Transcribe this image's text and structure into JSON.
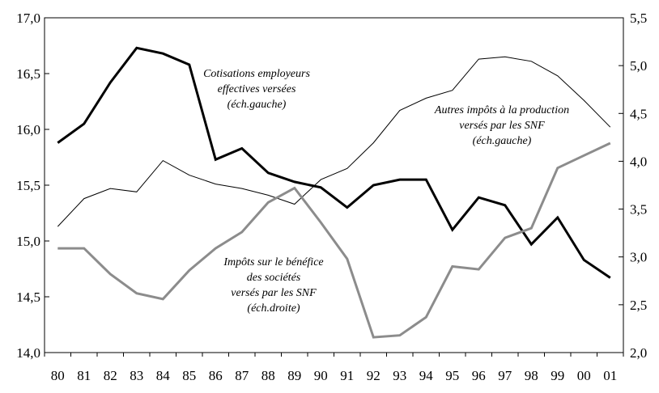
{
  "chart_data": {
    "type": "line",
    "categories": [
      "80",
      "81",
      "82",
      "83",
      "84",
      "85",
      "86",
      "87",
      "88",
      "89",
      "90",
      "91",
      "92",
      "93",
      "94",
      "95",
      "96",
      "97",
      "98",
      "99",
      "00",
      "01"
    ],
    "left_axis": {
      "ylim": [
        14.0,
        17.0
      ],
      "ticks": [
        "14,0",
        "14,5",
        "15,0",
        "15,5",
        "16,0",
        "16,5",
        "17,0"
      ],
      "tick_values": [
        14.0,
        14.5,
        15.0,
        15.5,
        16.0,
        16.5,
        17.0
      ]
    },
    "right_axis": {
      "ylim": [
        2.0,
        5.5
      ],
      "ticks": [
        "2,0",
        "2,5",
        "3,0",
        "3,5",
        "4,0",
        "4,5",
        "5,0",
        "5,5"
      ],
      "tick_values": [
        2.0,
        2.5,
        3.0,
        3.5,
        4.0,
        4.5,
        5.0,
        5.5
      ]
    },
    "series": [
      {
        "key": "cotisations",
        "axis": "left",
        "color": "#000000",
        "width": 3,
        "label_lines": [
          "Cotisations employeurs",
          "effectives versées",
          "(éch.gauche)"
        ],
        "values": [
          15.88,
          16.05,
          16.42,
          16.73,
          16.68,
          16.58,
          15.73,
          15.83,
          15.61,
          15.53,
          15.48,
          15.3,
          15.5,
          15.55,
          15.55,
          15.1,
          15.39,
          15.32,
          14.97,
          15.21,
          14.83,
          14.67
        ]
      },
      {
        "key": "autres_impots",
        "axis": "left",
        "color": "#000000",
        "width": 1,
        "label_lines": [
          "Autres impôts à la production",
          "versés par les SNF",
          "(éch.gauche)"
        ],
        "values": [
          15.13,
          15.38,
          15.47,
          15.44,
          15.72,
          15.59,
          15.51,
          15.47,
          15.41,
          15.33,
          15.55,
          15.65,
          15.88,
          16.17,
          16.28,
          16.35,
          16.63,
          16.65,
          16.61,
          16.48,
          16.26,
          16.02
        ]
      },
      {
        "key": "impots_benefice",
        "axis": "right",
        "color": "#8c8c8c",
        "width": 3,
        "label_lines": [
          "Impôts sur le bénéfice",
          "des sociétés",
          "versés par les SNF",
          "(éch.droite)"
        ],
        "values": [
          3.09,
          3.09,
          2.82,
          2.62,
          2.56,
          2.86,
          3.09,
          3.26,
          3.57,
          3.72,
          3.36,
          2.98,
          2.16,
          2.18,
          2.37,
          2.9,
          2.87,
          3.2,
          3.3,
          3.93,
          4.06,
          4.19
        ]
      }
    ]
  }
}
